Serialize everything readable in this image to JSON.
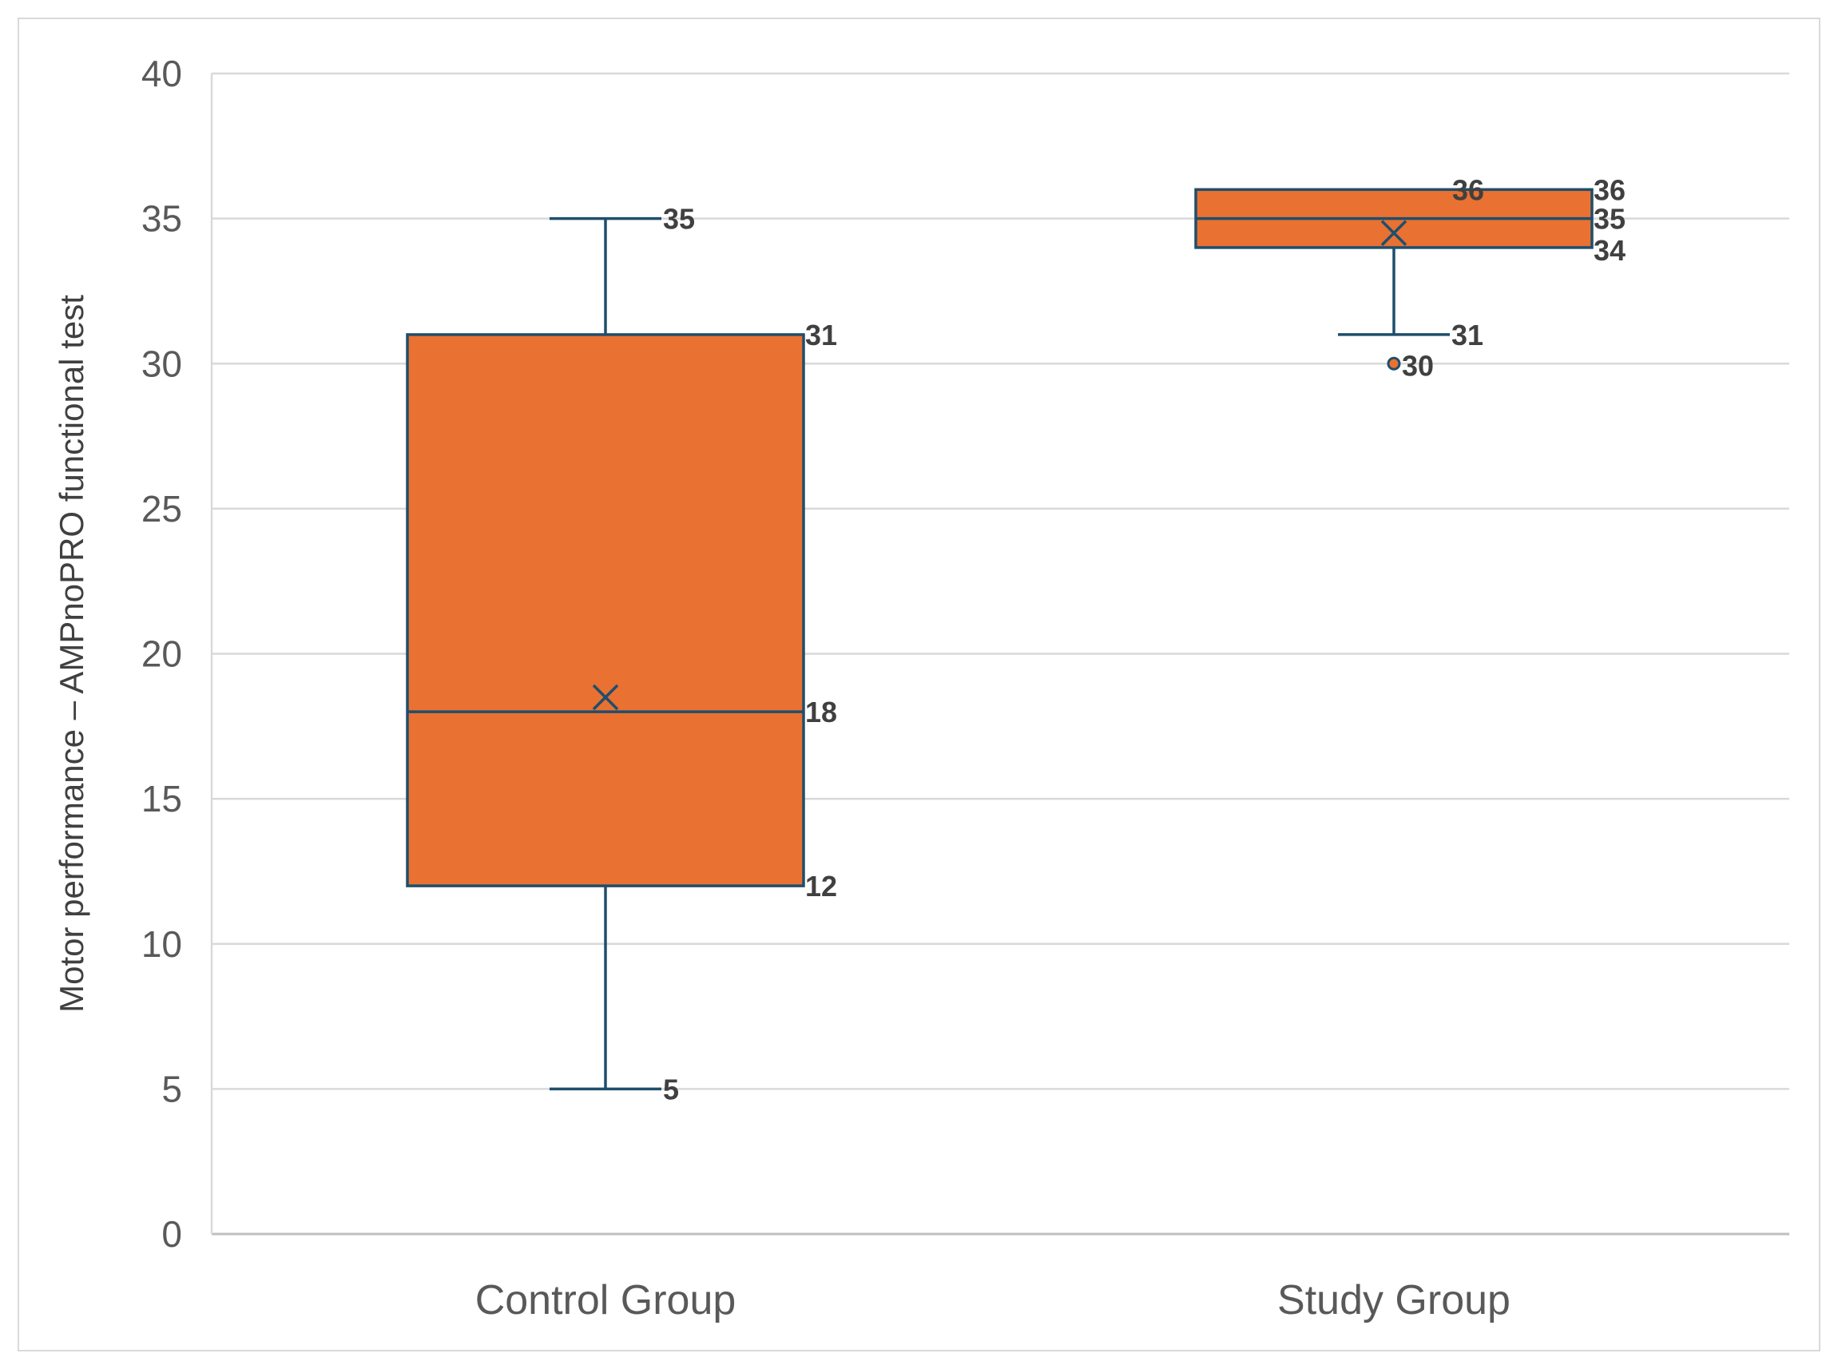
{
  "chart_data": {
    "type": "box",
    "title": "",
    "xlabel": "",
    "ylabel": "Motor performance – AMPnoPRO functional test",
    "ylim": [
      0,
      40
    ],
    "yticks": [
      0,
      5,
      10,
      15,
      20,
      25,
      30,
      35,
      40
    ],
    "grid": true,
    "colors": {
      "fill": "#E97132",
      "stroke": "#1F4E6B",
      "grid": "#d9d9d9",
      "axis": "#bfbfbf"
    },
    "categories": [
      "Control Group",
      "Study Group"
    ],
    "boxes": [
      {
        "name": "Control Group",
        "min": 5,
        "q1": 12,
        "median": 18,
        "q3": 31,
        "max": 35,
        "mean": 18.5,
        "outliers": [],
        "labels": [
          "35",
          "31",
          "18",
          "12",
          "5"
        ]
      },
      {
        "name": "Study Group",
        "min": 31,
        "q1": 34,
        "median": 35,
        "q3": 36,
        "max": 36,
        "mean": 34.5,
        "outliers": [
          30
        ],
        "labels": [
          "36",
          "36",
          "35",
          "34",
          "31",
          "30"
        ]
      }
    ]
  }
}
